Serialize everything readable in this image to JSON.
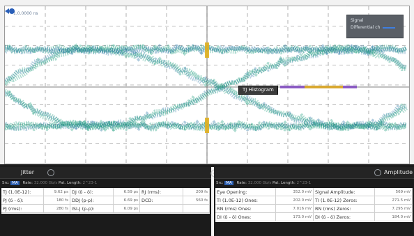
{
  "scope": {
    "timestamp": "1.0.0000 ns",
    "legend": {
      "line1": "Signal",
      "line2": "Differential ch"
    },
    "tj_histogram_label": "TJ Histogram",
    "colors": {
      "eye": "#1a9a7a",
      "eye_dark": "#1f6fa0",
      "grid": "#7a7a7a",
      "histogram": "#e0b020",
      "marker": "#2a5fb8"
    }
  },
  "jitter_panel": {
    "title": "Jitter",
    "info": {
      "src_label": "Src:",
      "src_value": "MA",
      "rate_label": "Rate:",
      "rate_value": "32.000 Gb/s",
      "pat_label": "Pat. Length:",
      "pat_value": "2^23-1"
    },
    "rows": [
      [
        {
          "label": "TJ (1.0E-12):",
          "value": "9.62 ps"
        },
        {
          "label": "DJ (δ - δ):",
          "value": "6.59 ps"
        },
        {
          "label": "RJ (rms):",
          "value": "209 fs"
        }
      ],
      [
        {
          "label": "PJ (δ - δ):",
          "value": "180 fs"
        },
        {
          "label": "DDJ (p-p):",
          "value": "6.69 ps"
        },
        {
          "label": "DCD:",
          "value": "560 fs"
        }
      ],
      [
        {
          "label": "PJ (rms):",
          "value": "280 fs"
        },
        {
          "label": "ISI-J (p-p):",
          "value": "6.09 ps"
        },
        {
          "label": "",
          "value": ""
        }
      ]
    ]
  },
  "amplitude_panel": {
    "title": "Amplitude",
    "info": {
      "src_label": "Src:",
      "src_value": "MA",
      "rate_label": "Rate:",
      "rate_value": "32.000 Gb/s",
      "pat_label": "Pat. Length:",
      "pat_value": "2^23-1"
    },
    "rows": [
      [
        {
          "label": "Eye Opening:",
          "value": "352.0 mV"
        },
        {
          "label": "Signal Amplitude:",
          "value": "569 mV"
        }
      ],
      [
        {
          "label": "TI (1.0E-12) Ones:",
          "value": "202.0 mV"
        },
        {
          "label": "TI (1.0E-12) Zeros:",
          "value": "271.5 mV"
        }
      ],
      [
        {
          "label": "RN (rms) Ones:",
          "value": "7.016 mV"
        },
        {
          "label": "RN (rms) Zeros:",
          "value": "7.295 mV"
        }
      ],
      [
        {
          "label": "DI (δ - δ) Ones:",
          "value": "173.0 mV"
        },
        {
          "label": "DI (δ - δ) Zeros:",
          "value": "184.0 mV"
        }
      ]
    ]
  }
}
